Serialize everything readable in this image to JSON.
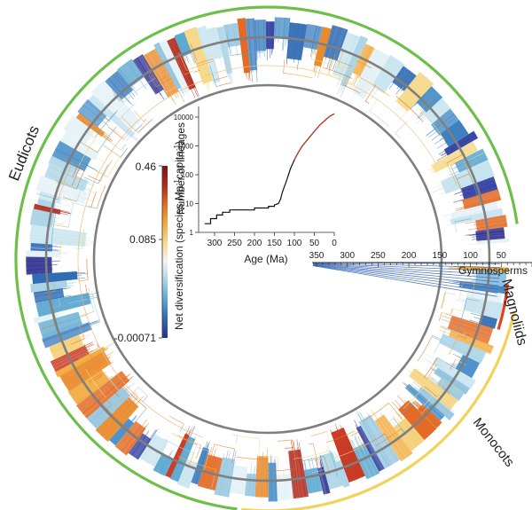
{
  "clade_labels": {
    "eudicots": "Eudicots",
    "gymnosperms": "Gymnosperms",
    "magnoliids": "Magnoliids",
    "monocots": "Monocots"
  },
  "colorbar": {
    "title": "Net diversification (species Ma",
    "title_sup1": "-1",
    "title_mid": "capita",
    "title_sup2": "-1",
    "title_end": ")",
    "max_label": "0.46",
    "mid_label": "0.085",
    "min_label": "-0.00071",
    "colors": [
      "#2b2f8f",
      "#2e6ab3",
      "#5aa7d0",
      "#a9d3e6",
      "#f3f3f3",
      "#f6d98a",
      "#f2a93c",
      "#e26a24",
      "#b22a1e",
      "#7a1416"
    ]
  },
  "time_axis": {
    "ticks": [
      "350",
      "300",
      "250",
      "200",
      "150",
      "100",
      "50"
    ]
  },
  "chart_data": {
    "type": "line",
    "title": "",
    "xlabel": "Age (Ma)",
    "ylabel": "Number of lineages",
    "x_ticks": [
      "300",
      "250",
      "200",
      "150",
      "100",
      "50",
      "0"
    ],
    "y_ticks": [
      "1",
      "10",
      "100",
      "1000",
      "10000"
    ],
    "xlim": [
      340,
      0
    ],
    "ylim": [
      1,
      10000
    ],
    "y_scale": "log",
    "x": [
      325,
      315,
      310,
      300,
      295,
      285,
      280,
      270,
      262,
      255,
      240,
      220,
      200,
      185,
      165,
      150,
      140,
      135,
      130,
      120,
      110,
      100,
      90,
      80,
      65,
      50,
      35,
      20,
      10,
      0
    ],
    "y": [
      2,
      2,
      3,
      3,
      4,
      4,
      5,
      5,
      6,
      6,
      6,
      6,
      7,
      7,
      8,
      9,
      10,
      14,
      25,
      60,
      160,
      330,
      600,
      1000,
      1800,
      3200,
      5500,
      8500,
      11000,
      13000
    ]
  },
  "colors": {
    "eudicot_arc": "#6cc04a",
    "monocot_arc": "#f1d35a",
    "magnoliid_bar": "#e0431f",
    "gymnosperm_line": "#3a66b5",
    "guide_circle": "#7f7f7f"
  }
}
